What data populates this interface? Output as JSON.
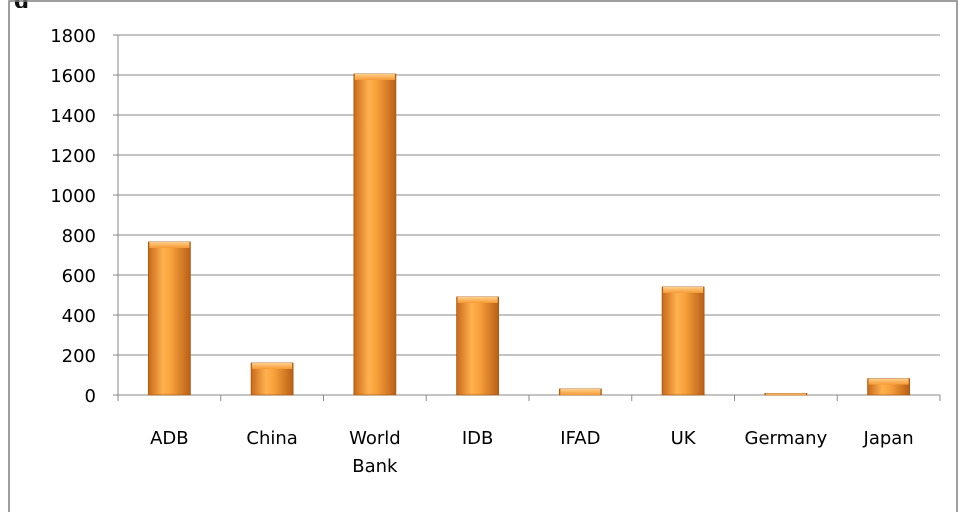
{
  "chart_data": {
    "type": "bar",
    "title_fragment": "g",
    "categories": [
      [
        "ADB"
      ],
      [
        "China"
      ],
      [
        "World",
        "Bank"
      ],
      [
        "IDB"
      ],
      [
        "IFAD"
      ],
      [
        "UK"
      ],
      [
        "Germany"
      ],
      [
        "Japan"
      ]
    ],
    "values": [
      765,
      160,
      1605,
      490,
      30,
      540,
      8,
      82
    ],
    "ylim": [
      0,
      1800
    ],
    "yticks": [
      0,
      200,
      400,
      600,
      800,
      1000,
      1200,
      1400,
      1600,
      1800
    ],
    "grid": true,
    "bar_color": "#f39a2e",
    "bar_highlight": "#ffc06a",
    "bar_shadow": "#b4611a"
  }
}
